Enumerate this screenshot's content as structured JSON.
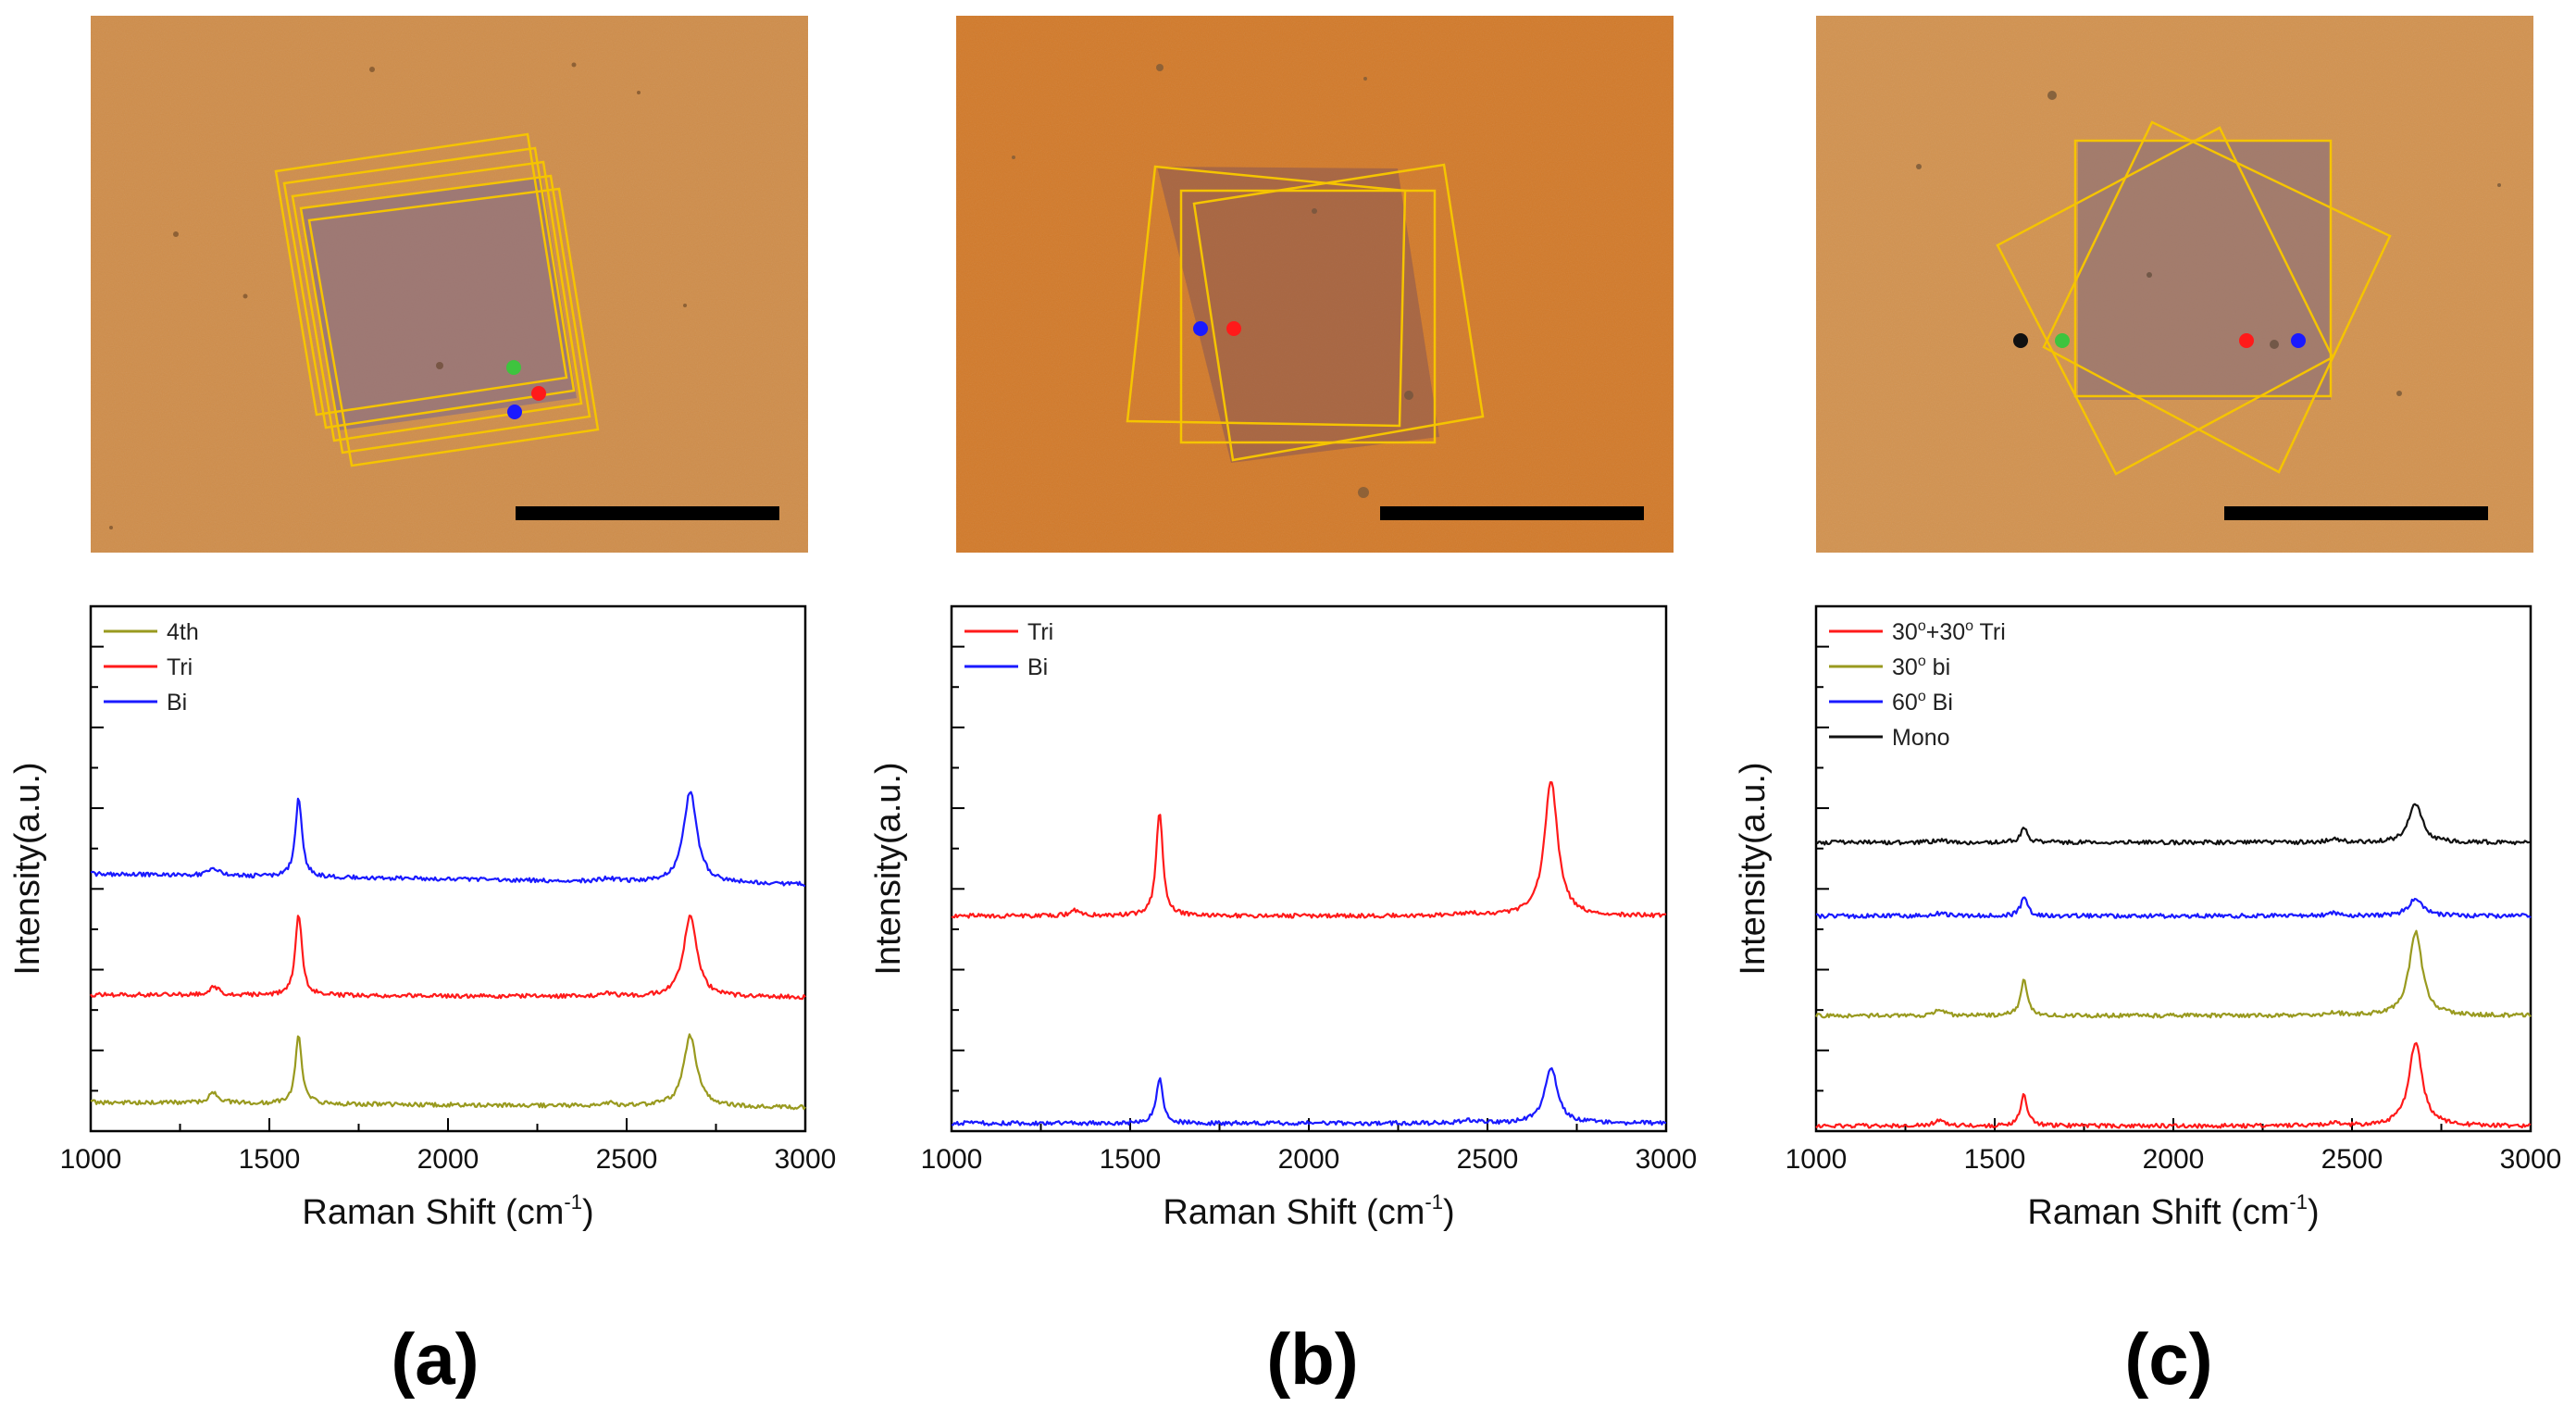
{
  "panels": [
    {
      "id": "a",
      "panel_label": "(a)",
      "micrograph": {
        "background": "#cf8d4a",
        "markers": [
          {
            "name": "green",
            "color": "#3ec43e"
          },
          {
            "name": "red",
            "color": "#ff1a1a"
          },
          {
            "name": "blue",
            "color": "#1a1aff"
          }
        ]
      }
    },
    {
      "id": "b",
      "panel_label": "(b)",
      "micrograph": {
        "background": "#d27a2a",
        "markers": [
          {
            "name": "blue",
            "color": "#1a1aff"
          },
          {
            "name": "red",
            "color": "#ff1a1a"
          }
        ]
      }
    },
    {
      "id": "c",
      "panel_label": "(c)",
      "micrograph": {
        "background": "#d2924f",
        "markers": [
          {
            "name": "black",
            "color": "#111111"
          },
          {
            "name": "green",
            "color": "#3ec43e"
          },
          {
            "name": "red",
            "color": "#ff1a1a"
          },
          {
            "name": "blue",
            "color": "#1a1aff"
          }
        ]
      }
    }
  ],
  "chart_data": [
    {
      "type": "line",
      "panel": "a",
      "xlabel": "Raman Shift (cm",
      "xlabel_sup": "-1",
      "xlabel_end": ")",
      "ylabel": "Intensity(a.u.)",
      "xlim": [
        1000,
        3000
      ],
      "xticks": [
        "1000",
        "1500",
        "2000",
        "2500",
        "3000"
      ],
      "ylim": [
        0,
        10
      ],
      "legend_position": "top-left",
      "series": [
        {
          "name": "4th",
          "legend": "4th",
          "color": "#999a1f",
          "baseline": 0.55,
          "slope": -0.1,
          "d": 0.2,
          "g": 1.3,
          "twod": 1.35
        },
        {
          "name": "Tri",
          "legend": "Tri",
          "color": "#ff1a1a",
          "baseline": 2.6,
          "slope": -0.05,
          "d": 0.15,
          "g": 1.55,
          "twod": 1.55
        },
        {
          "name": "Bi",
          "legend": "Bi",
          "color": "#1a1aff",
          "baseline": 4.9,
          "slope": -0.2,
          "d": 0.15,
          "g": 1.5,
          "twod": 1.75
        }
      ]
    },
    {
      "type": "line",
      "panel": "b",
      "xlabel": "Raman Shift (cm",
      "xlabel_sup": "-1",
      "xlabel_end": ")",
      "ylabel": "Intensity(a.u.)",
      "xlim": [
        1000,
        3000
      ],
      "xticks": [
        "1000",
        "1500",
        "2000",
        "2500",
        "3000"
      ],
      "ylim": [
        0,
        10
      ],
      "legend_position": "top-left",
      "series": [
        {
          "name": "Tri",
          "legend": "Tri",
          "color": "#ff1a1a",
          "baseline": 4.1,
          "slope": 0.0,
          "d": 0.1,
          "g": 2.0,
          "twod": 2.6
        },
        {
          "name": "Bi",
          "legend": "Bi",
          "color": "#1a1aff",
          "baseline": 0.15,
          "slope": 0.0,
          "d": 0.0,
          "g": 0.85,
          "twod": 1.05
        }
      ]
    },
    {
      "type": "line",
      "panel": "c",
      "xlabel": "Raman Shift (cm",
      "xlabel_sup": "-1",
      "xlabel_end": ")",
      "ylabel": "Intensity(a.u.)",
      "xlim": [
        1000,
        3000
      ],
      "xticks": [
        "1000",
        "1500",
        "2000",
        "2500",
        "3000"
      ],
      "ylim": [
        0,
        10
      ],
      "legend_position": "top-left",
      "series": [
        {
          "name": "30°+30° Tri",
          "legend": "30",
          "legend_sup": "o",
          "legend_mid": "+30",
          "legend_sup2": "o",
          "legend_end": " Tri",
          "color": "#ff1a1a",
          "baseline": 0.1,
          "slope": 0.0,
          "d": 0.1,
          "g": 0.6,
          "twod": 1.6
        },
        {
          "name": "30° bi",
          "legend": "30",
          "legend_sup": "o",
          "legend_end": " bi",
          "color": "#999a1f",
          "baseline": 2.2,
          "slope": 0.0,
          "d": 0.1,
          "g": 0.7,
          "twod": 1.6
        },
        {
          "name": "60° Bi",
          "legend": "60",
          "legend_sup": "o",
          "legend_end": " Bi",
          "color": "#1a1aff",
          "baseline": 4.1,
          "slope": 0.0,
          "d": 0.05,
          "g": 0.35,
          "twod": 0.35
        },
        {
          "name": "Mono",
          "legend": "Mono",
          "color": "#111111",
          "baseline": 5.5,
          "slope": 0.0,
          "d": 0.05,
          "g": 0.3,
          "twod": 0.75
        }
      ]
    }
  ]
}
